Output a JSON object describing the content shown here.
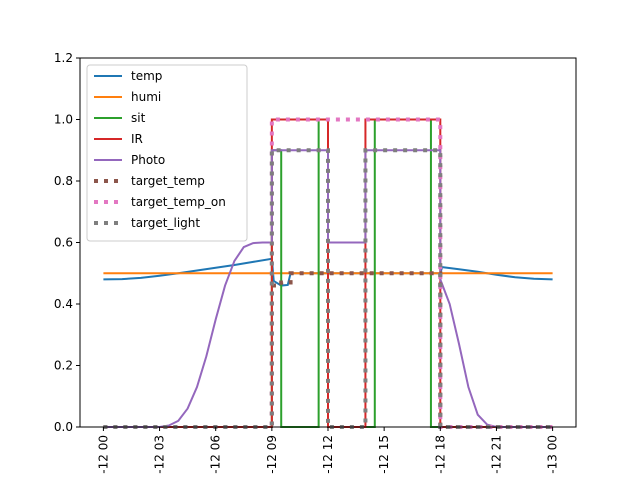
{
  "chart_data": {
    "type": "line",
    "x_tick_labels": [
      "-12 00",
      "-12 03",
      "-12 06",
      "-12 09",
      "-12 12",
      "-12 15",
      "-12 18",
      "-12 21",
      "-13 00"
    ],
    "x_ticks": [
      0,
      3,
      6,
      9,
      12,
      15,
      18,
      21,
      24
    ],
    "xlim": [
      -1.25,
      25.25
    ],
    "ylim": [
      0,
      1.2
    ],
    "y_ticks": [
      0.0,
      0.2,
      0.4,
      0.6,
      0.8,
      1.0,
      1.2
    ],
    "y_tick_labels": [
      "0.0",
      "0.2",
      "0.4",
      "0.6",
      "0.8",
      "1.0",
      "1.2"
    ],
    "legend_position": "upper-left",
    "series": [
      {
        "name": "temp",
        "color": "#1f77b4",
        "style": "solid",
        "x": [
          0,
          1,
          2,
          3,
          4,
          5,
          6,
          7,
          8,
          9,
          9.1,
          9.5,
          9.85,
          10,
          18,
          18.1,
          19,
          20,
          21,
          22,
          23,
          24
        ],
        "y": [
          0.48,
          0.481,
          0.485,
          0.492,
          0.5,
          0.509,
          0.518,
          0.527,
          0.537,
          0.547,
          0.475,
          0.46,
          0.462,
          0.5,
          0.5,
          0.52,
          0.513,
          0.505,
          0.495,
          0.487,
          0.482,
          0.48
        ]
      },
      {
        "name": "humi",
        "color": "#ff7f0e",
        "style": "solid",
        "x": [
          0,
          24
        ],
        "y": [
          0.5,
          0.5
        ]
      },
      {
        "name": "sit",
        "color": "#2ca02c",
        "style": "solid",
        "x": [
          0,
          9,
          9,
          9.5,
          9.5,
          11.5,
          11.5,
          12,
          12,
          14.5,
          14.5,
          17.5,
          17.5,
          18,
          18,
          24
        ],
        "y": [
          0,
          0,
          0.9,
          0.9,
          0,
          0,
          1,
          1,
          0,
          0,
          1,
          1,
          0,
          0,
          0,
          0
        ]
      },
      {
        "name": "IR",
        "color": "#d62728",
        "style": "solid",
        "x": [
          0,
          9,
          9,
          12,
          12,
          14,
          14,
          18,
          18,
          24
        ],
        "y": [
          0,
          0,
          1,
          1,
          0,
          0,
          1,
          1,
          0,
          0
        ]
      },
      {
        "name": "Photo",
        "color": "#9467bd",
        "style": "solid",
        "x": [
          0,
          3,
          3.5,
          4,
          4.5,
          5,
          5.5,
          6,
          6.5,
          7,
          7.5,
          8,
          8.5,
          9,
          9,
          12,
          12,
          14,
          14,
          18,
          18,
          18.5,
          19,
          19.5,
          20,
          20.5,
          21,
          24
        ],
        "y": [
          0,
          0,
          0.005,
          0.02,
          0.06,
          0.13,
          0.23,
          0.35,
          0.46,
          0.54,
          0.585,
          0.598,
          0.6,
          0.6,
          0.9,
          0.9,
          0.6,
          0.6,
          0.9,
          0.9,
          0.48,
          0.4,
          0.27,
          0.13,
          0.04,
          0.008,
          0,
          0
        ]
      },
      {
        "name": "target_temp",
        "color": "#8c564b",
        "style": "dotted",
        "x": [
          0,
          9,
          9,
          9.5,
          9.5,
          10,
          10,
          18,
          18,
          24
        ],
        "y": [
          0,
          0,
          0.46,
          0.46,
          0.47,
          0.47,
          0.5,
          0.5,
          0,
          0
        ]
      },
      {
        "name": "target_temp_on",
        "color": "#e377c2",
        "style": "dotted",
        "x": [
          0,
          9,
          9,
          18,
          18,
          24
        ],
        "y": [
          0,
          0,
          1,
          1,
          0,
          0
        ]
      },
      {
        "name": "target_light",
        "color": "#7f7f7f",
        "style": "dotted",
        "x": [
          0,
          9,
          9,
          12,
          12,
          14,
          14,
          18,
          18,
          24
        ],
        "y": [
          0,
          0,
          0.9,
          0.9,
          0,
          0,
          0.9,
          0.9,
          0,
          0
        ]
      }
    ]
  }
}
